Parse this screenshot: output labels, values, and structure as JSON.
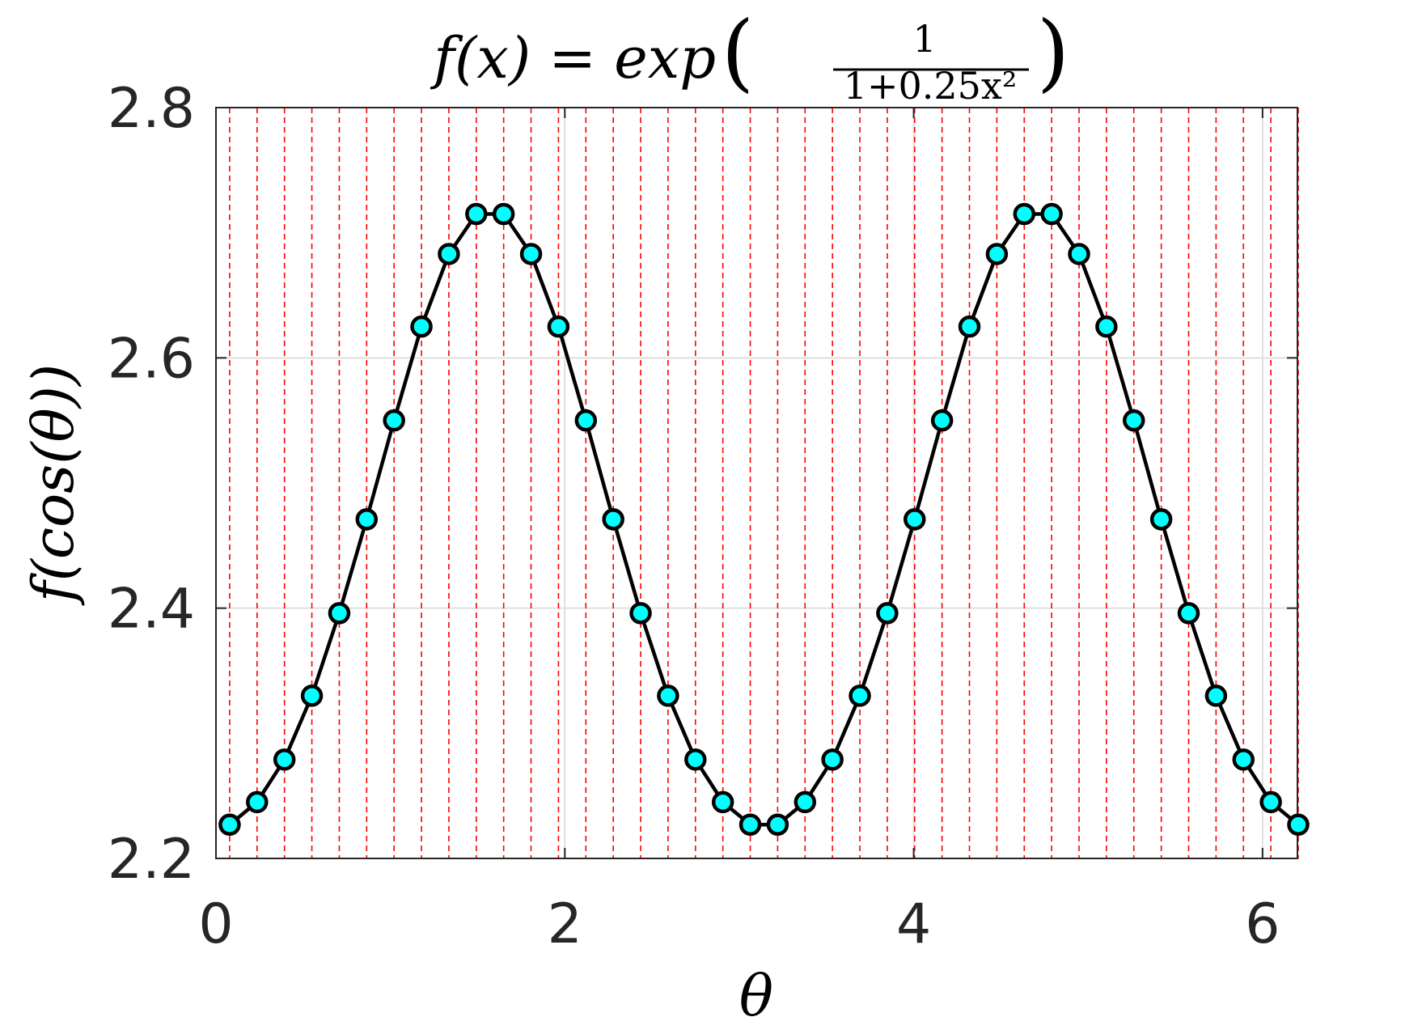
{
  "chart_data": {
    "type": "line",
    "title": "f(x) = exp(1 / (1+0.25x²))",
    "title_parts": {
      "lhs": "f(x) = exp",
      "numerator": "1",
      "denominator": "1+0.25x²"
    },
    "xlabel": "θ",
    "ylabel": "f(cos(θ))",
    "xlim": [
      0,
      6.2
    ],
    "ylim": [
      2.2,
      2.8
    ],
    "xticks": [
      0,
      2,
      4,
      6
    ],
    "yticks": [
      2.2,
      2.4,
      2.6,
      2.8
    ],
    "xtick_labels": [
      "0",
      "2",
      "4",
      "6"
    ],
    "ytick_labels": [
      "2.2",
      "2.4",
      "2.6",
      "2.8"
    ],
    "grid": true,
    "legend": "none",
    "vertical_reference_lines_x": [
      0.0785,
      0.2356,
      0.3927,
      0.5498,
      0.7069,
      0.8639,
      1.021,
      1.1781,
      1.3352,
      1.4923,
      1.6493,
      1.8064,
      1.9635,
      2.1206,
      2.2777,
      2.4347,
      2.5918,
      2.7489,
      2.906,
      3.0631,
      3.2201,
      3.3772,
      3.5343,
      3.6914,
      3.8485,
      4.0055,
      4.1626,
      4.3197,
      4.4768,
      4.6339,
      4.7909,
      4.948,
      5.1051,
      5.2622,
      5.4193,
      5.5763,
      5.7334,
      5.8905,
      6.0476,
      6.2047
    ],
    "series": [
      {
        "x": [
          0.0785,
          0.2356,
          0.3927,
          0.5498,
          0.7069,
          0.8639,
          1.021,
          1.1781,
          1.3352,
          1.4923,
          1.6493,
          1.8064,
          1.9635,
          2.1206,
          2.2777,
          2.4347,
          2.5918,
          2.7489,
          2.906,
          3.0631,
          3.2201,
          3.3772,
          3.5343,
          3.6914,
          3.8485,
          4.0055,
          4.1626,
          4.3197,
          4.4768,
          4.6339,
          4.7909,
          4.948,
          5.1051,
          5.2622,
          5.4193,
          5.5763,
          5.7334,
          5.8905,
          6.0476,
          6.2047
        ],
        "y": [
          2.227,
          2.245,
          2.279,
          2.33,
          2.396,
          2.471,
          2.55,
          2.625,
          2.683,
          2.715,
          2.715,
          2.683,
          2.625,
          2.55,
          2.471,
          2.396,
          2.33,
          2.279,
          2.245,
          2.227,
          2.227,
          2.245,
          2.279,
          2.33,
          2.396,
          2.471,
          2.55,
          2.625,
          2.683,
          2.715,
          2.715,
          2.683,
          2.625,
          2.55,
          2.471,
          2.396,
          2.33,
          2.279,
          2.245,
          2.227
        ]
      }
    ],
    "colors": {
      "line": "#000000",
      "marker_fill": "#00ffff",
      "marker_edge": "#000000",
      "reference_line": "#ff0000",
      "grid": "#dfdfdf",
      "axes": "#262626"
    }
  }
}
